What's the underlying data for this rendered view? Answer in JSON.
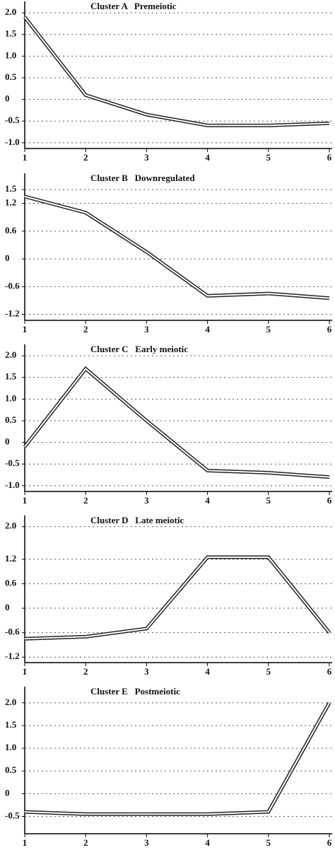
{
  "chart_data": [
    {
      "type": "line",
      "title": "Cluster A   Premeiotic",
      "x": [
        1,
        2,
        3,
        4,
        5,
        6
      ],
      "values": [
        1.9,
        0.1,
        -0.35,
        -0.6,
        -0.6,
        -0.55
      ],
      "xlim": [
        1,
        6
      ],
      "xticks": [
        1,
        2,
        3,
        4,
        5,
        6
      ],
      "ylim": [
        -1.1,
        2.1
      ],
      "yticks": [
        {
          "value": 2,
          "label": "2.0"
        },
        1.5,
        {
          "value": 1,
          "label": "1.0"
        },
        0.5,
        0,
        -0.5,
        {
          "value": -1,
          "label": "-1.0"
        }
      ],
      "grid": true
    },
    {
      "type": "line",
      "title": "Cluster B   Downregulated",
      "x": [
        1,
        2,
        3,
        4,
        5,
        6
      ],
      "values": [
        1.35,
        1.0,
        0.15,
        -0.8,
        -0.75,
        -0.85
      ],
      "xlim": [
        1,
        6
      ],
      "xticks": [
        1,
        2,
        3,
        4,
        5,
        6
      ],
      "ylim": [
        -1.3,
        1.7
      ],
      "yticks": [
        1.5,
        1.2,
        0.6,
        0,
        -0.6,
        -1.2
      ],
      "grid": true
    },
    {
      "type": "line",
      "title": "Cluster C   Early meiotic",
      "x": [
        1,
        2,
        3,
        4,
        5,
        6
      ],
      "values": [
        -0.1,
        1.7,
        0.5,
        -0.65,
        -0.7,
        -0.8
      ],
      "xlim": [
        1,
        6
      ],
      "xticks": [
        1,
        2,
        3,
        4,
        5,
        6
      ],
      "ylim": [
        -1.1,
        2.1
      ],
      "yticks": [
        {
          "value": 2,
          "label": "2.0"
        },
        1.5,
        {
          "value": 1,
          "label": "1.0"
        },
        0.5,
        0,
        -0.5,
        {
          "value": -1,
          "label": "-1.0"
        }
      ],
      "grid": true
    },
    {
      "type": "line",
      "title": "Cluster D   Late meiotic",
      "x": [
        1,
        2,
        3,
        4,
        5,
        6
      ],
      "values": [
        -0.75,
        -0.7,
        -0.5,
        1.25,
        1.25,
        -0.6
      ],
      "xlim": [
        1,
        6
      ],
      "xticks": [
        1,
        2,
        3,
        4,
        5,
        6
      ],
      "ylim": [
        -1.3,
        2.1
      ],
      "yticks": [
        {
          "value": 2,
          "label": "2.0"
        },
        1.2,
        0.6,
        0,
        -0.6,
        -1.2
      ],
      "grid": true
    },
    {
      "type": "line",
      "title": "Cluster E   Postmeiotic",
      "x": [
        1,
        2,
        3,
        4,
        5,
        6
      ],
      "values": [
        -0.4,
        -0.45,
        -0.45,
        -0.45,
        -0.4,
        2.0
      ],
      "xlim": [
        1,
        6
      ],
      "xticks": [
        1,
        2,
        3,
        4,
        5,
        6
      ],
      "ylim": [
        -0.85,
        2.2
      ],
      "yticks": [
        {
          "value": 2,
          "label": "2.0"
        },
        1.5,
        {
          "value": 1,
          "label": "1.0"
        },
        0.5,
        0,
        -0.5
      ],
      "grid": true
    }
  ]
}
